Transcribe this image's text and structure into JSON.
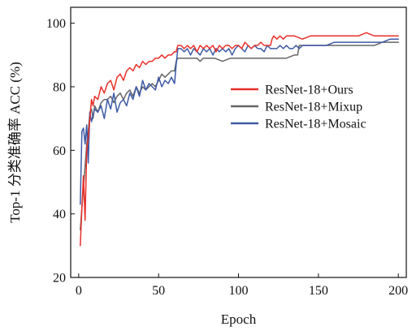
{
  "chart_data": {
    "type": "line",
    "xlabel": "Epoch",
    "ylabel": "Top-1 分类准确率 ACC (%)",
    "xlim": [
      -5,
      205
    ],
    "ylim": [
      20,
      105
    ],
    "xticks": [
      0,
      50,
      100,
      150,
      200
    ],
    "yticks": [
      20,
      40,
      60,
      80,
      100
    ],
    "grid": false,
    "legend_position": "center-right",
    "series": [
      {
        "name": "ResNet-18+Ours",
        "color": "#e8302a",
        "x": [
          1,
          2,
          3,
          4,
          5,
          6,
          7,
          8,
          9,
          10,
          12,
          14,
          16,
          18,
          20,
          22,
          24,
          26,
          28,
          30,
          32,
          34,
          36,
          38,
          40,
          42,
          44,
          46,
          48,
          50,
          52,
          54,
          56,
          58,
          60,
          61,
          62,
          64,
          66,
          68,
          70,
          72,
          74,
          76,
          78,
          80,
          82,
          84,
          86,
          88,
          90,
          92,
          94,
          96,
          98,
          100,
          102,
          104,
          106,
          108,
          110,
          112,
          114,
          116,
          118,
          120,
          121,
          122,
          124,
          126,
          128,
          130,
          135,
          140,
          145,
          150,
          155,
          160,
          165,
          170,
          175,
          180,
          185,
          190,
          195,
          200
        ],
        "y": [
          30,
          42,
          52,
          38,
          60,
          64,
          70,
          76,
          74,
          77,
          76,
          80,
          78,
          81,
          82,
          79,
          83,
          84,
          82,
          85,
          86,
          85,
          87,
          86,
          88,
          87,
          88,
          88,
          89,
          89,
          90,
          89,
          90,
          90,
          91,
          91,
          93,
          93,
          92,
          93,
          92,
          93,
          91,
          93,
          92,
          93,
          92,
          93,
          91,
          93,
          92,
          93,
          93,
          92,
          93,
          93,
          92,
          94,
          93,
          92,
          93,
          93,
          94,
          93,
          93,
          93,
          95,
          96,
          95,
          96,
          95,
          96,
          96,
          95,
          96,
          96,
          96,
          96,
          96,
          96,
          96,
          97,
          96,
          96,
          96,
          96
        ]
      },
      {
        "name": "ResNet-18+Mixup",
        "color": "#666666",
        "x": [
          1,
          2,
          3,
          4,
          5,
          6,
          7,
          8,
          9,
          10,
          12,
          14,
          16,
          18,
          20,
          22,
          24,
          26,
          28,
          30,
          32,
          34,
          36,
          38,
          40,
          42,
          44,
          46,
          48,
          50,
          52,
          54,
          56,
          58,
          60,
          61,
          62,
          64,
          66,
          68,
          70,
          72,
          74,
          76,
          78,
          80,
          85,
          90,
          95,
          100,
          105,
          110,
          115,
          120,
          125,
          130,
          135,
          137,
          138,
          140,
          145,
          150,
          155,
          160,
          165,
          170,
          175,
          180,
          185,
          190,
          195,
          200
        ],
        "y": [
          35,
          42,
          48,
          55,
          62,
          66,
          72,
          73,
          70,
          74,
          72,
          75,
          76,
          76,
          77,
          75,
          77,
          78,
          76,
          78,
          79,
          77,
          80,
          78,
          80,
          79,
          80,
          81,
          80,
          82,
          84,
          83,
          84,
          85,
          85,
          88,
          89,
          89,
          89,
          89,
          89,
          89,
          89,
          88,
          89,
          89,
          89,
          88,
          89,
          89,
          89,
          89,
          89,
          89,
          89,
          89,
          90,
          90,
          93,
          93,
          93,
          93,
          93,
          93,
          93,
          93,
          93,
          93,
          93,
          94,
          94,
          94
        ]
      },
      {
        "name": "ResNet-18+Mosaic",
        "color": "#3d5aa6",
        "x": [
          1,
          2,
          3,
          4,
          5,
          6,
          7,
          8,
          9,
          10,
          12,
          14,
          16,
          18,
          20,
          22,
          24,
          26,
          28,
          30,
          32,
          34,
          36,
          38,
          40,
          42,
          44,
          46,
          48,
          50,
          52,
          54,
          56,
          58,
          60,
          61,
          62,
          64,
          66,
          68,
          70,
          72,
          74,
          76,
          78,
          80,
          82,
          84,
          86,
          88,
          90,
          92,
          94,
          96,
          98,
          100,
          102,
          104,
          106,
          108,
          110,
          112,
          114,
          116,
          118,
          120,
          122,
          124,
          126,
          128,
          130,
          132,
          134,
          136,
          138,
          140,
          145,
          150,
          155,
          160,
          165,
          170,
          175,
          180,
          185,
          190,
          195,
          200
        ],
        "y": [
          43,
          66,
          67,
          62,
          68,
          56,
          72,
          69,
          71,
          73,
          72,
          74,
          70,
          76,
          73,
          78,
          72,
          75,
          76,
          74,
          78,
          76,
          80,
          77,
          82,
          79,
          81,
          80,
          79,
          83,
          80,
          82,
          81,
          83,
          81,
          87,
          92,
          92,
          91,
          92,
          90,
          92,
          91,
          90,
          92,
          91,
          92,
          90,
          92,
          91,
          92,
          91,
          92,
          90,
          92,
          93,
          92,
          91,
          93,
          92,
          93,
          92,
          92,
          91,
          93,
          92,
          92,
          92,
          93,
          92,
          93,
          92,
          92,
          93,
          92,
          93,
          93,
          93,
          93,
          94,
          94,
          94,
          94,
          94,
          94,
          94,
          95,
          95
        ]
      }
    ]
  }
}
